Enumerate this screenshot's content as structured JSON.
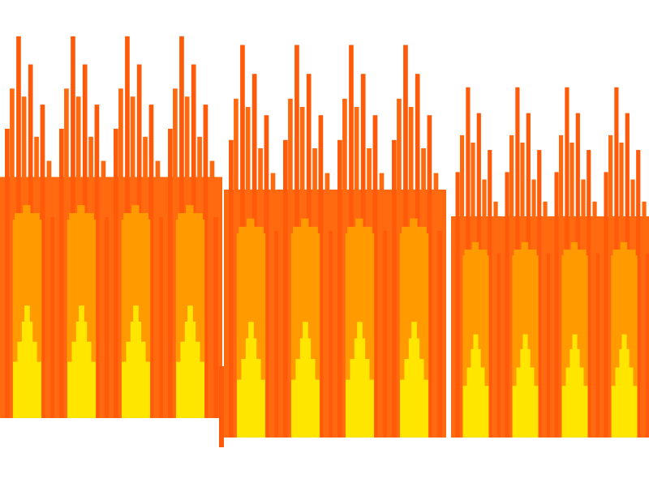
{
  "scene": {
    "title": "",
    "palette": {
      "outer_flame": "#ff5a0a",
      "mid_flame": "#ff6a10",
      "inner_flame": "#ff9a00",
      "core_flame": "#ffe600",
      "background": "#ffffff"
    },
    "panels": [
      {
        "name": "left-fire-panel",
        "flames": 4
      },
      {
        "name": "middle-fire-panel",
        "flames": 4
      },
      {
        "name": "right-fire-panel",
        "flames": 4
      }
    ]
  }
}
